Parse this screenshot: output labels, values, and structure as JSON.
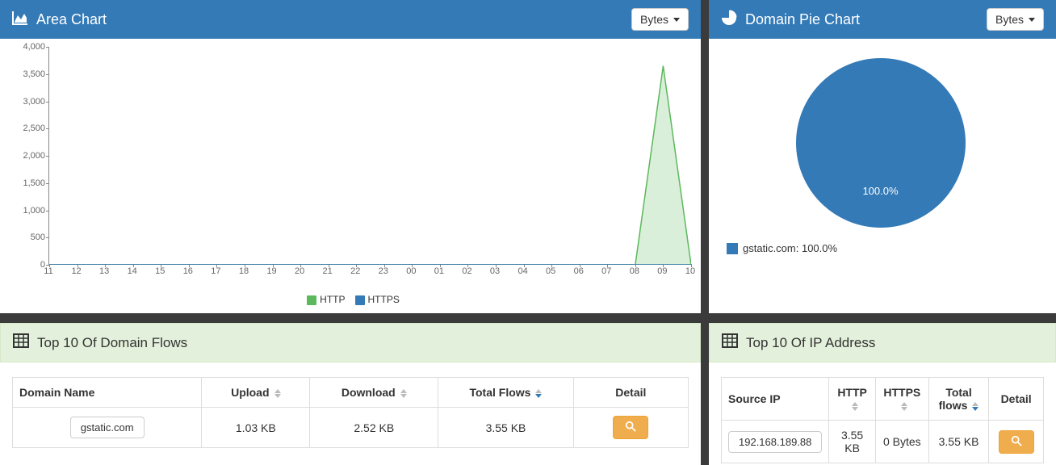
{
  "area_panel": {
    "title": "Area Chart",
    "dropdown_label": "Bytes",
    "chart": {
      "type": "area",
      "x_ticks": [
        "11",
        "12",
        "13",
        "14",
        "15",
        "16",
        "17",
        "18",
        "19",
        "20",
        "21",
        "22",
        "23",
        "00",
        "01",
        "02",
        "03",
        "04",
        "05",
        "06",
        "07",
        "08",
        "09",
        "10"
      ],
      "y_ticks": [
        0,
        500,
        1000,
        1500,
        2000,
        2500,
        3000,
        3500,
        4000
      ],
      "y_tick_labels": [
        "0",
        "500",
        "1,000",
        "1,500",
        "2,000",
        "2,500",
        "3,000",
        "3,500",
        "4,000"
      ],
      "ylim": [
        0,
        4000
      ],
      "series": [
        {
          "name": "HTTP",
          "color": "#5cb85c",
          "fill": "#b9e2b9",
          "fill_opacity": 0.55,
          "values": [
            0,
            0,
            0,
            0,
            0,
            0,
            0,
            0,
            0,
            0,
            0,
            0,
            0,
            0,
            0,
            0,
            0,
            0,
            0,
            0,
            0,
            0,
            3650,
            0
          ]
        },
        {
          "name": "HTTPS",
          "color": "#337ab7",
          "fill": "#337ab7",
          "fill_opacity": 0.4,
          "values": [
            0,
            0,
            0,
            0,
            0,
            0,
            0,
            0,
            0,
            0,
            0,
            0,
            0,
            0,
            0,
            0,
            0,
            0,
            0,
            0,
            0,
            0,
            0,
            0
          ]
        }
      ],
      "axis_color": "#888888",
      "tick_font_size": 11,
      "legend_font_size": 12,
      "background": "#ffffff"
    }
  },
  "pie_panel": {
    "title": "Domain Pie Chart",
    "dropdown_label": "Bytes",
    "chart": {
      "type": "pie",
      "slices": [
        {
          "label": "gstatic.com",
          "value": 100.0,
          "color": "#337ab7"
        }
      ],
      "center_label": "100.0%",
      "legend_text": "gstatic.com: 100.0%",
      "background": "#ffffff",
      "label_color": "#ffffff",
      "label_fontsize": 13
    }
  },
  "domain_table": {
    "title": "Top 10 Of Domain Flows",
    "columns": [
      "Domain Name",
      "Upload",
      "Download",
      "Total Flows",
      "Detail"
    ],
    "sortable": [
      false,
      true,
      true,
      true,
      false
    ],
    "sorted_col": 3,
    "sorted_dir": "desc",
    "rows": [
      {
        "domain": "gstatic.com",
        "upload": "1.03 KB",
        "download": "2.52 KB",
        "total": "3.55 KB"
      }
    ],
    "header_bg": "#e3f0db",
    "border_color": "#dddddd"
  },
  "ip_table": {
    "title": "Top 10 Of IP Address",
    "columns": [
      "Source IP",
      "HTTP",
      "HTTPS",
      "Total flows",
      "Detail"
    ],
    "sortable": [
      false,
      true,
      true,
      true,
      false
    ],
    "sorted_col": 3,
    "sorted_dir": "desc",
    "rows": [
      {
        "ip": "192.168.189.88",
        "http": "3.55 KB",
        "https": "0 Bytes",
        "total": "3.55 KB"
      }
    ],
    "header_bg": "#e3f0db",
    "border_color": "#dddddd"
  },
  "colors": {
    "panel_header": "#337ab7",
    "panel_header_text": "#ffffff",
    "green_header": "#e3f0db",
    "btn_warning": "#f0ad4e",
    "page_bg": "#3b3b3b"
  }
}
